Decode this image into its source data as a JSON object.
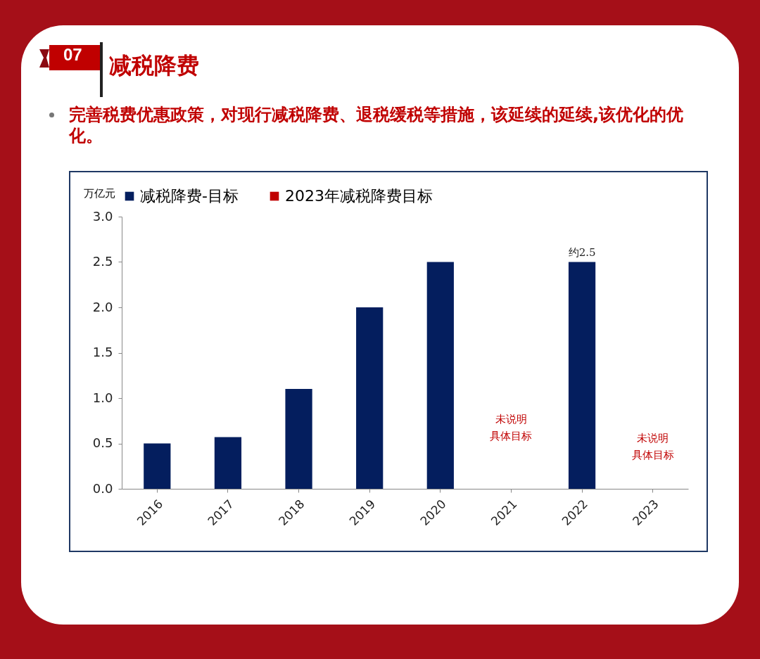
{
  "chart_data": {
    "type": "bar",
    "title": "减税降费",
    "subtitle": "完善税费优惠政策，对现行减税降费、退税缓税等措施，该延续的延续,该优化的优化。",
    "ylabel": "万亿元",
    "categories": [
      "2016",
      "2017",
      "2018",
      "2019",
      "2020",
      "2021",
      "2022",
      "2023"
    ],
    "series": [
      {
        "name": "减税降费-目标",
        "color": "#041e5e",
        "values": [
          0.5,
          0.57,
          1.1,
          2.0,
          2.5,
          null,
          2.5,
          null
        ]
      },
      {
        "name": "2023年减税降费目标",
        "color": "#c00000",
        "values": [
          null,
          null,
          null,
          null,
          null,
          null,
          null,
          null
        ]
      }
    ],
    "ylim": [
      0,
      3.0
    ],
    "yticks": [
      {
        "value": 0,
        "label": "0.0"
      },
      {
        "value": 0.5,
        "label": "0.5"
      },
      {
        "value": 1,
        "label": "1.0"
      },
      {
        "value": 1.5,
        "label": "1.5"
      },
      {
        "value": 2,
        "label": "2.0"
      },
      {
        "value": 2.5,
        "label": "2.5"
      },
      {
        "value": 3,
        "label": "3.0"
      }
    ],
    "legend": "top",
    "annotations": [
      "07",
      {
        "text": "约2.5",
        "x": "2022",
        "y": 2.5
      },
      "未说明具体目标",
      "未说明具体目标"
    ]
  }
}
